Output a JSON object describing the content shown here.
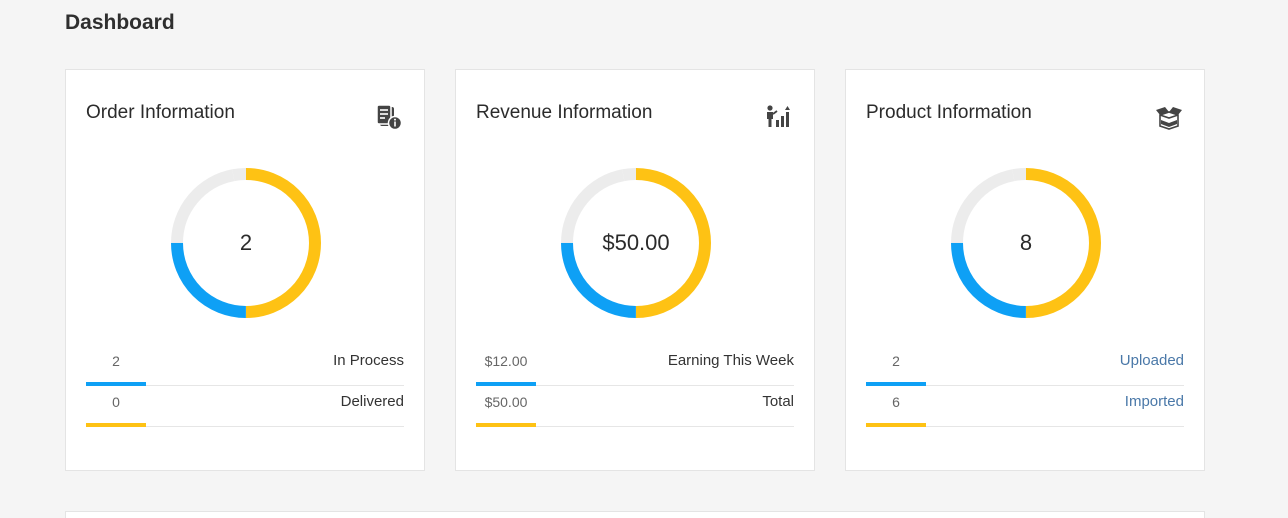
{
  "page": {
    "title": "Dashboard"
  },
  "colors": {
    "blue": "#0ea0f5",
    "yellow": "#fec214",
    "track": "#ececec"
  },
  "cards": [
    {
      "title": "Order Information",
      "icon": "order-info-icon",
      "center_value": "2",
      "donut": {
        "blue_fraction": 0.25,
        "yellow_fraction": 0.5,
        "gap_fraction": 0.25
      },
      "legend": [
        {
          "value": "2",
          "label": "In Process",
          "color": "#0ea0f5"
        },
        {
          "value": "0",
          "label": "Delivered",
          "color": "#fec214"
        }
      ]
    },
    {
      "title": "Revenue Information",
      "icon": "revenue-growth-icon",
      "center_value": "$50.00",
      "donut": {
        "blue_fraction": 0.25,
        "yellow_fraction": 0.5,
        "gap_fraction": 0.25
      },
      "legend": [
        {
          "value": "$12.00",
          "label": "Earning This Week",
          "color": "#0ea0f5"
        },
        {
          "value": "$50.00",
          "label": "Total",
          "color": "#fec214"
        }
      ]
    },
    {
      "title": "Product Information",
      "icon": "open-box-icon",
      "center_value": "8",
      "donut": {
        "blue_fraction": 0.25,
        "yellow_fraction": 0.5,
        "gap_fraction": 0.25
      },
      "legend": [
        {
          "value": "2",
          "label": "Uploaded",
          "color": "#0ea0f5"
        },
        {
          "value": "6",
          "label": "Imported",
          "color": "#fec214"
        }
      ]
    }
  ]
}
